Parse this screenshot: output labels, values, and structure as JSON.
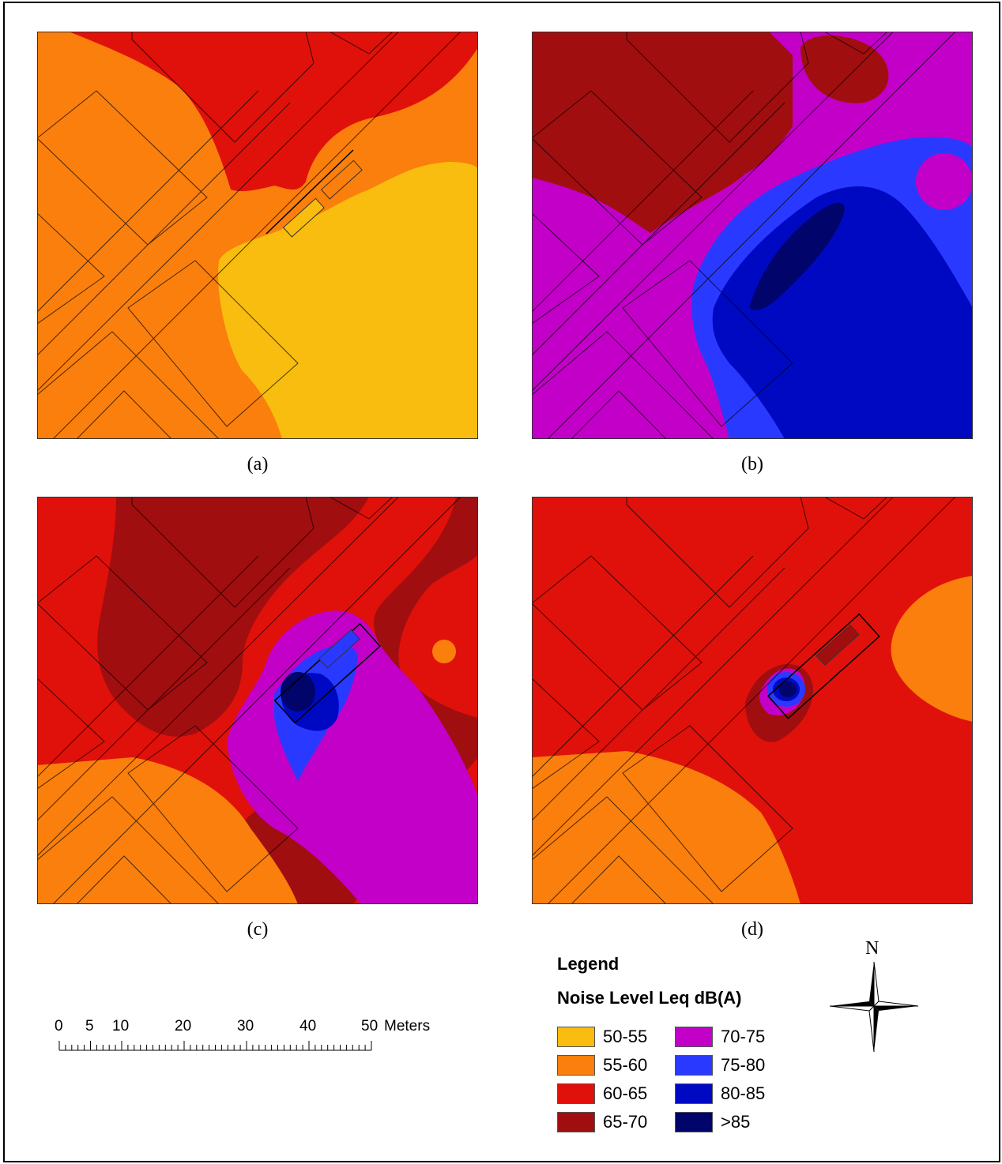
{
  "panels": [
    {
      "label": "(a)"
    },
    {
      "label": "(b)"
    },
    {
      "label": "(c)"
    },
    {
      "label": "(d)"
    }
  ],
  "legend": {
    "title": "Legend",
    "subtitle": "Noise Level Leq dB(A)",
    "items": [
      {
        "label": "50-55",
        "color": "#f8bd0e"
      },
      {
        "label": "55-60",
        "color": "#fa7f0c"
      },
      {
        "label": "60-65",
        "color": "#e0110a"
      },
      {
        "label": "65-70",
        "color": "#a10e10"
      },
      {
        "label": "70-75",
        "color": "#c200c8"
      },
      {
        "label": "75-80",
        "color": "#2a39ff"
      },
      {
        "label": "80-85",
        "color": "#0009c2"
      },
      {
        "label": ">85",
        "color": "#01046a"
      }
    ]
  },
  "scale_bar": {
    "labels": [
      "0",
      "5",
      "10",
      "20",
      "30",
      "40",
      "50"
    ],
    "unit": "Meters"
  },
  "north_arrow": {
    "label": "N"
  }
}
